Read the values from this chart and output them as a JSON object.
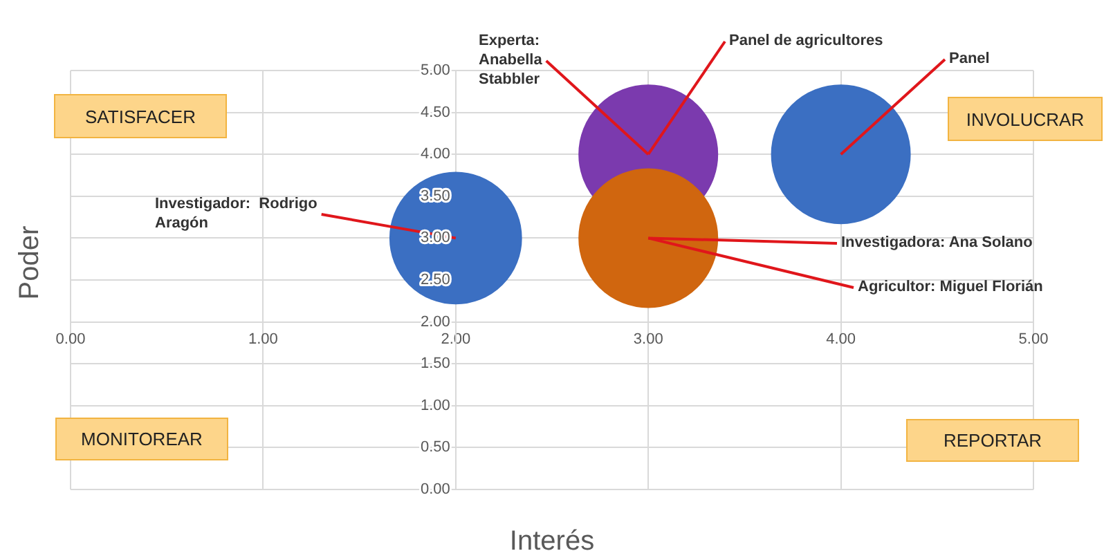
{
  "chart_data": {
    "type": "bubble",
    "xlabel": "Interés",
    "ylabel": "Poder",
    "x": [
      2,
      3,
      3,
      4
    ],
    "values": [
      3,
      4,
      3,
      4
    ],
    "sizes": [
      0.9,
      1,
      1,
      1
    ],
    "colors": [
      "#3b6fc2",
      "#7b3aae",
      "#d0660f",
      "#3b6fc2"
    ],
    "xlim": [
      0,
      5
    ],
    "ylim": [
      0,
      5
    ],
    "xticks": [
      {
        "value": 0,
        "label": "0.00"
      },
      {
        "value": 1,
        "label": "1.00"
      },
      {
        "value": 2,
        "label": "2.00"
      },
      {
        "value": 3,
        "label": "3.00"
      },
      {
        "value": 4,
        "label": "4.00"
      },
      {
        "value": 5,
        "label": "5.00"
      }
    ],
    "yticks": [
      {
        "value": 0,
        "label": "0.00"
      },
      {
        "value": 0.5,
        "label": "0.50"
      },
      {
        "value": 1,
        "label": "1.00"
      },
      {
        "value": 1.5,
        "label": "1.50"
      },
      {
        "value": 2,
        "label": "2.00"
      },
      {
        "value": 2.5,
        "label": "2.50"
      },
      {
        "value": 3,
        "label": "3.00"
      },
      {
        "value": 3.5,
        "label": "3.50"
      },
      {
        "value": 4,
        "label": "4.00"
      },
      {
        "value": 4.5,
        "label": "4.50"
      },
      {
        "value": 5,
        "label": "5.00"
      }
    ],
    "grid": true,
    "legend": false,
    "marker": "circle",
    "annotations": [
      {
        "text": "Investigador:  Rodrigo Aragón",
        "x": 2,
        "y": 3
      },
      {
        "text": "Experta: Anabella Stabbler",
        "x": 3,
        "y": 4
      },
      {
        "text": "Panel de agricultores",
        "x": 3,
        "y": 4
      },
      {
        "text": "Panel",
        "x": 4,
        "y": 4
      },
      {
        "text": "Investigadora: Ana Solano",
        "x": 3,
        "y": 3
      },
      {
        "text": "Agricultor: Miguel Florián",
        "x": 3,
        "y": 3
      },
      "SATISFACER",
      "INVOLUCRAR",
      "MONITOREAR",
      "REPORTAR"
    ]
  }
}
